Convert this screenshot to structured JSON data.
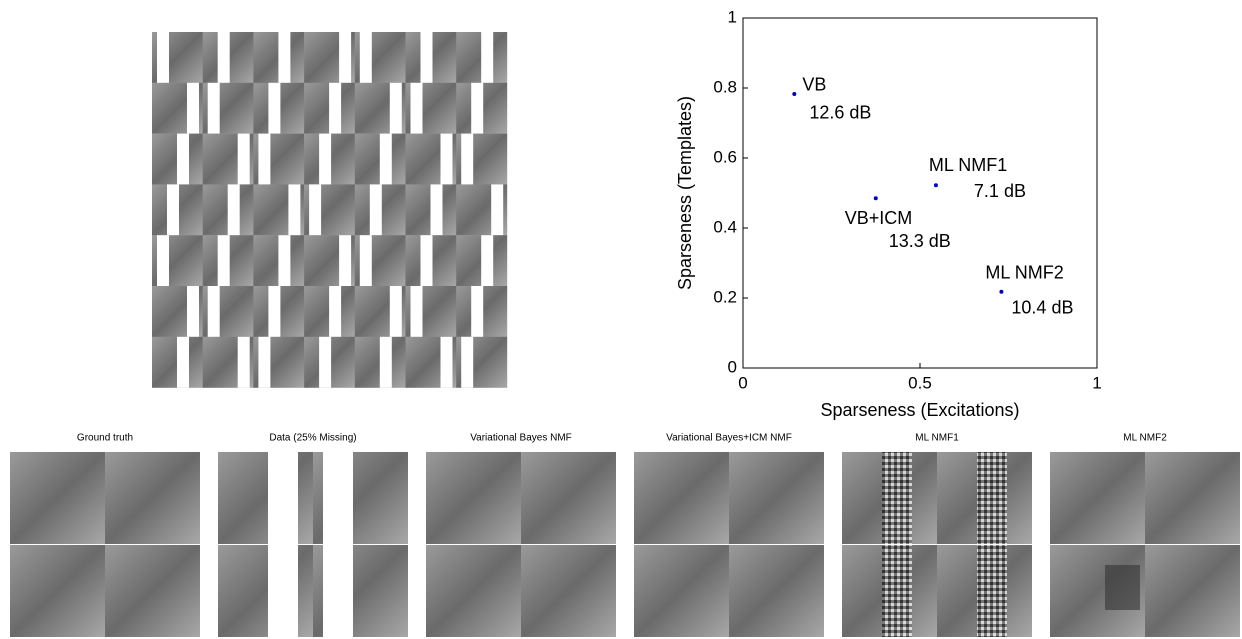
{
  "chart_data": {
    "type": "scatter",
    "x": [
      0.145,
      0.545,
      0.375,
      0.73
    ],
    "series": [
      {
        "color": "#0000cc",
        "values": [
          0.783,
          0.522,
          0.485,
          0.218
        ]
      }
    ],
    "point_names": [
      "VB",
      "ML NMF1",
      "VB+ICM",
      "ML NMF2"
    ],
    "point_scores": [
      "12.6 dB",
      "7.1 dB",
      "13.3 dB",
      "10.4 dB"
    ],
    "xlabel": "Sparseness (Excitations)",
    "ylabel": "Sparseness (Templates)",
    "xlim": [
      0,
      1
    ],
    "ylim": [
      0,
      1
    ],
    "xticks": [
      0,
      0.5,
      1
    ],
    "yticks": [
      0,
      0.2,
      0.4,
      0.6,
      0.8,
      1
    ]
  },
  "image_panels": {
    "titles": [
      "Ground truth",
      "Data (25% Missing)",
      "Variational Bayes NMF",
      "Variational Bayes+ICM NMF",
      "ML NMF1",
      "ML NMF2"
    ]
  }
}
